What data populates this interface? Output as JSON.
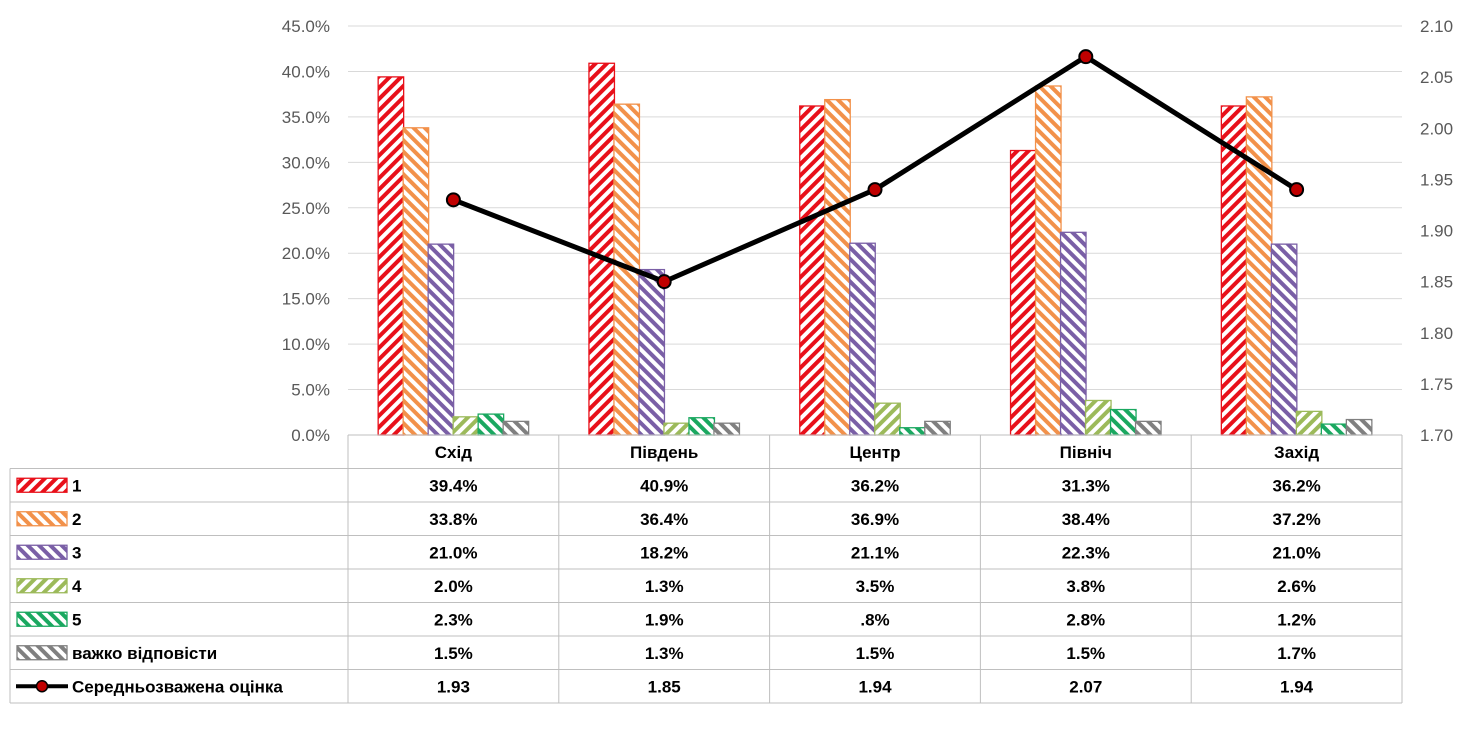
{
  "chart_data": {
    "type": "bar",
    "categories": [
      "Схід",
      "Південь",
      "Центр",
      "Північ",
      "Захід"
    ],
    "series": [
      {
        "name": "1",
        "values": [
          39.4,
          40.9,
          36.2,
          31.3,
          36.2
        ],
        "labels": [
          "39.4%",
          "40.9%",
          "36.2%",
          "31.3%",
          "36.2%"
        ],
        "color": "#e8101a",
        "axis": "left"
      },
      {
        "name": "2",
        "values": [
          33.8,
          36.4,
          36.9,
          38.4,
          37.2
        ],
        "labels": [
          "33.8%",
          "36.4%",
          "36.9%",
          "38.4%",
          "37.2%"
        ],
        "color": "#f2914a",
        "axis": "left"
      },
      {
        "name": "3",
        "values": [
          21.0,
          18.2,
          21.1,
          22.3,
          21.0
        ],
        "labels": [
          "21.0%",
          "18.2%",
          "21.1%",
          "22.3%",
          "21.0%"
        ],
        "color": "#7a5fa6",
        "axis": "left"
      },
      {
        "name": "4",
        "values": [
          2.0,
          1.3,
          3.5,
          3.8,
          2.6
        ],
        "labels": [
          "2.0%",
          "1.3%",
          "3.5%",
          "3.8%",
          "2.6%"
        ],
        "color": "#9cba5a",
        "axis": "left"
      },
      {
        "name": "5",
        "values": [
          2.3,
          1.9,
          0.8,
          2.8,
          1.2
        ],
        "labels": [
          "2.3%",
          "1.9%",
          ".8%",
          "2.8%",
          "1.2%"
        ],
        "color": "#1aa860",
        "axis": "left"
      },
      {
        "name": "важко відповісти",
        "values": [
          1.5,
          1.3,
          1.5,
          1.5,
          1.7
        ],
        "labels": [
          "1.5%",
          "1.3%",
          "1.5%",
          "1.5%",
          "1.7%"
        ],
        "color": "#808080",
        "axis": "left"
      },
      {
        "name": "Середньозважена оцінка",
        "type": "line",
        "values": [
          1.93,
          1.85,
          1.94,
          2.07,
          1.94
        ],
        "labels": [
          "1.93",
          "1.85",
          "1.94",
          "2.07",
          "1.94"
        ],
        "color": "#000000",
        "marker_color": "#c00000",
        "axis": "right"
      }
    ],
    "ylim_left": [
      0,
      45
    ],
    "ylim_right": [
      1.7,
      2.1
    ],
    "yticks_left": [
      "0.0%",
      "5.0%",
      "10.0%",
      "15.0%",
      "20.0%",
      "25.0%",
      "30.0%",
      "35.0%",
      "40.0%",
      "45.0%"
    ],
    "yticks_right": [
      "1.70",
      "1.75",
      "1.80",
      "1.85",
      "1.90",
      "1.95",
      "2.00",
      "2.05",
      "2.10"
    ],
    "grid": true,
    "legend": "data table"
  }
}
